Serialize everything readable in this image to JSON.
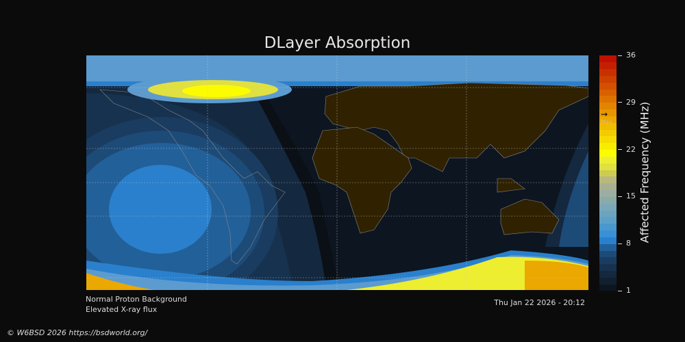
{
  "chart_data": {
    "type": "heatmap",
    "title": "DLayer Absorption",
    "colorbar": {
      "label": "Affected Frequency (MHz)",
      "range": [
        1,
        36
      ],
      "ticks": [
        1,
        8,
        15,
        22,
        29,
        36
      ],
      "max_marker_value": 27,
      "max_marker_label": "Max",
      "colors": [
        "#0d1520",
        "#10202f",
        "#14283f",
        "#17324f",
        "#1a3c60",
        "#1d4b78",
        "#22609a",
        "#2a80cc",
        "#3890d8",
        "#4a98cc",
        "#5ca0c8",
        "#6aa4c0",
        "#7aa8b8",
        "#8aabaa",
        "#9aaea2",
        "#a9b090",
        "#b8b880",
        "#cccc50",
        "#e0e040",
        "#eeee30",
        "#fcfc00",
        "#f8ec00",
        "#f6dc00",
        "#f2cc00",
        "#efbc00",
        "#eaa800",
        "#e69600",
        "#e28400",
        "#de7200",
        "#d86000",
        "#d25000",
        "#cc4000",
        "#c83000",
        "#c42000",
        "#c01000"
      ]
    },
    "overlays": [
      "coastlines",
      "lat/lon grid"
    ],
    "legend_notes": [
      "Normal Proton Background",
      "Elevated X-ray flux"
    ],
    "timestamp": "Thu Jan 22 2026 - 20:12"
  },
  "footer": {
    "copyright": "© W6BSD 2026 https://bsdworld.org/"
  },
  "colors": {
    "background": "#0b0b0b",
    "night": "#0d1520",
    "land": "#302200",
    "coast": "#888888"
  }
}
